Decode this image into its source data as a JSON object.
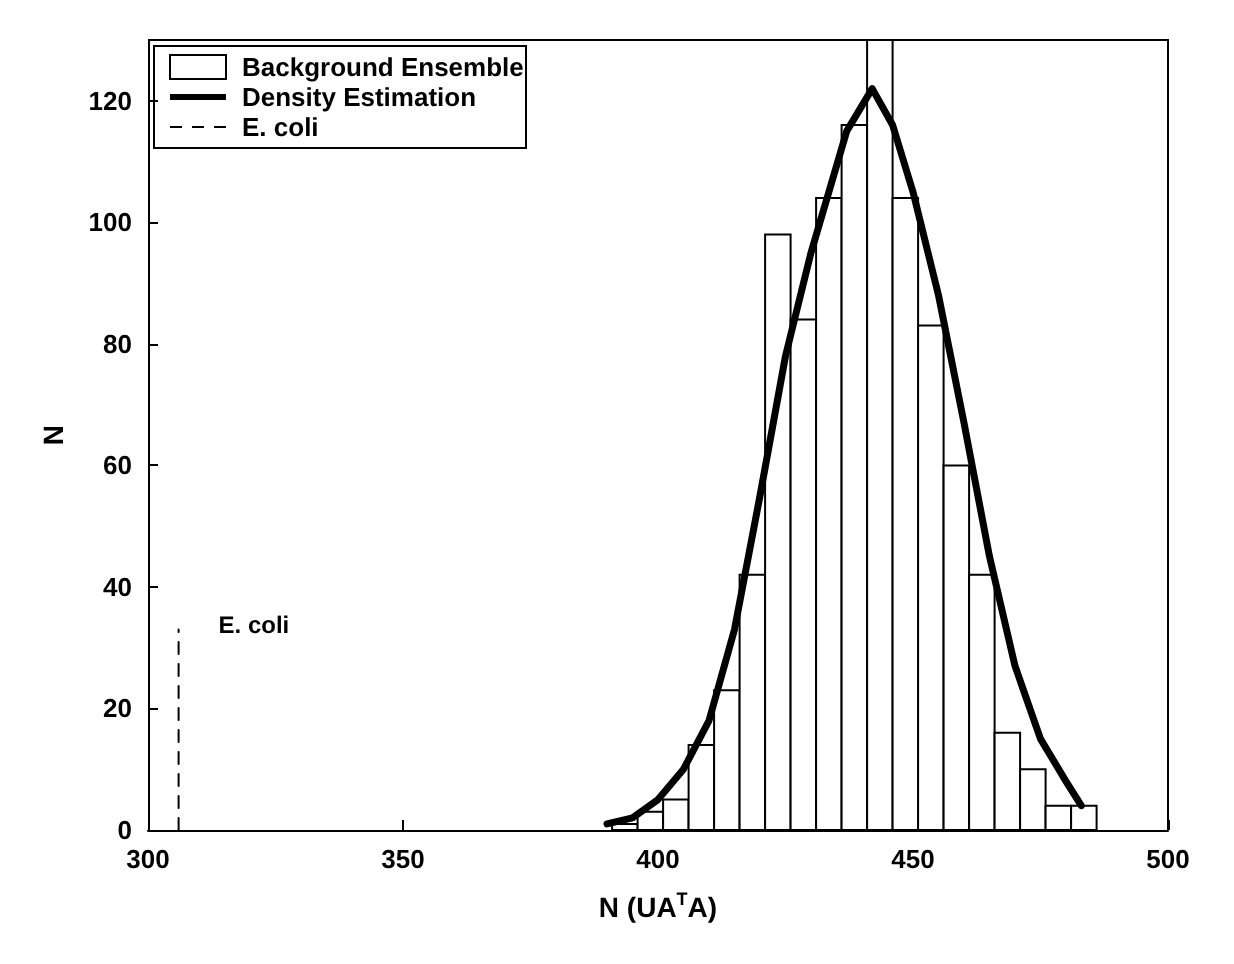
{
  "chart_data": {
    "type": "histogram",
    "xlabel": "N (UA$^{T}$A)",
    "ylabel": "N",
    "xlim": [
      300,
      500
    ],
    "xticks": [
      300,
      350,
      400,
      450,
      500
    ],
    "ylim": [
      0,
      130
    ],
    "yticks": [
      0,
      20,
      40,
      60,
      80,
      100,
      120
    ],
    "legend": "top left",
    "grid": false,
    "series": [
      {
        "name": "Background Ensemble",
        "color": "#ffffff",
        "bins": [
          391,
          396,
          401,
          406,
          411,
          416,
          421,
          426,
          431,
          436,
          441,
          446,
          451,
          456,
          461,
          466,
          471,
          476,
          481,
          486
        ],
        "values": [
          1,
          3,
          5,
          14,
          23,
          42,
          98,
          84,
          104,
          116,
          130,
          104,
          83,
          60,
          42,
          16,
          10,
          4,
          4
        ]
      },
      {
        "type": "line",
        "name": "Density Estimation",
        "color": "#000000",
        "line_style": "solid",
        "x": [
          390,
          395,
          400,
          405,
          410,
          415,
          420,
          425,
          430,
          437,
          442,
          446,
          450,
          455,
          460,
          465,
          470,
          475,
          480,
          483
        ],
        "values": [
          1,
          2,
          5,
          10,
          18,
          33,
          55,
          78,
          95,
          115,
          122,
          116,
          105,
          88,
          67,
          45,
          27,
          15,
          8,
          4
        ]
      },
      {
        "type": "line",
        "name": "E. coli",
        "color": "#000000",
        "line_style": "dashed",
        "x": [
          306,
          306
        ],
        "values": [
          0,
          33
        ]
      }
    ]
  }
}
